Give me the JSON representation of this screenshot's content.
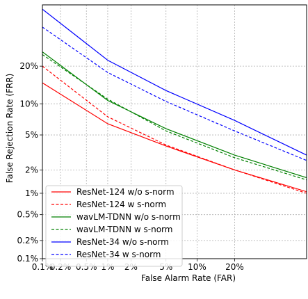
{
  "chart_data": {
    "type": "line",
    "xlabel": "False Alarm Rate (FAR)",
    "ylabel": "False Rejection Rate (FRR)",
    "x_scale": "probit",
    "y_scale": "probit",
    "xlim": [
      0.1,
      50
    ],
    "ylim": [
      0.1,
      45
    ],
    "x_ticks": [
      {
        "value": 0.1,
        "label": "0.1%"
      },
      {
        "value": 0.2,
        "label": "0.2%"
      },
      {
        "value": 0.5,
        "label": "0.5%"
      },
      {
        "value": 1,
        "label": "1%"
      },
      {
        "value": 2,
        "label": "2%"
      },
      {
        "value": 5,
        "label": "5%"
      },
      {
        "value": 10,
        "label": "10%"
      },
      {
        "value": 20,
        "label": "20%"
      }
    ],
    "y_ticks": [
      {
        "value": 0.1,
        "label": "0.1%"
      },
      {
        "value": 0.2,
        "label": "0.2%"
      },
      {
        "value": 0.5,
        "label": "0.5%"
      },
      {
        "value": 1,
        "label": "1%"
      },
      {
        "value": 2,
        "label": "2%"
      },
      {
        "value": 5,
        "label": "5%"
      },
      {
        "value": 10,
        "label": "10%"
      },
      {
        "value": 20,
        "label": "20%"
      }
    ],
    "grid": true,
    "legend_position": "lower-left",
    "series": [
      {
        "name": "ResNet-124 w/o s-norm",
        "color": "#ff0000",
        "dash": "solid",
        "points": [
          [
            0.1,
            15.0
          ],
          [
            1,
            6.5
          ],
          [
            5,
            3.8
          ],
          [
            20,
            2.0
          ],
          [
            50,
            1.05
          ]
        ]
      },
      {
        "name": "ResNet-124 w s-norm",
        "color": "#ff0000",
        "dash": "dashed",
        "points": [
          [
            0.1,
            20.0
          ],
          [
            1,
            7.6
          ],
          [
            5,
            3.9
          ],
          [
            20,
            2.0
          ],
          [
            50,
            1.0
          ]
        ]
      },
      {
        "name": "wavLM-TDNN w/o s-norm",
        "color": "#008000",
        "dash": "solid",
        "points": [
          [
            0.1,
            25.0
          ],
          [
            1,
            10.7
          ],
          [
            5,
            5.8
          ],
          [
            20,
            3.0
          ],
          [
            50,
            1.6
          ]
        ]
      },
      {
        "name": "wavLM-TDNN w s-norm",
        "color": "#008000",
        "dash": "dashed",
        "points": [
          [
            0.1,
            24.0
          ],
          [
            1,
            11.0
          ],
          [
            5,
            5.5
          ],
          [
            20,
            2.8
          ],
          [
            50,
            1.5
          ]
        ]
      },
      {
        "name": "ResNet-34 w/o s-norm",
        "color": "#0000ff",
        "dash": "solid",
        "points": [
          [
            0.1,
            43.0
          ],
          [
            1,
            22.0
          ],
          [
            5,
            13.0
          ],
          [
            20,
            7.0
          ],
          [
            50,
            3.0
          ]
        ]
      },
      {
        "name": "ResNet-34 w s-norm",
        "color": "#0000ff",
        "dash": "dashed",
        "points": [
          [
            0.1,
            35.0
          ],
          [
            1,
            18.0
          ],
          [
            5,
            10.5
          ],
          [
            20,
            5.5
          ],
          [
            50,
            2.6
          ]
        ]
      }
    ]
  }
}
